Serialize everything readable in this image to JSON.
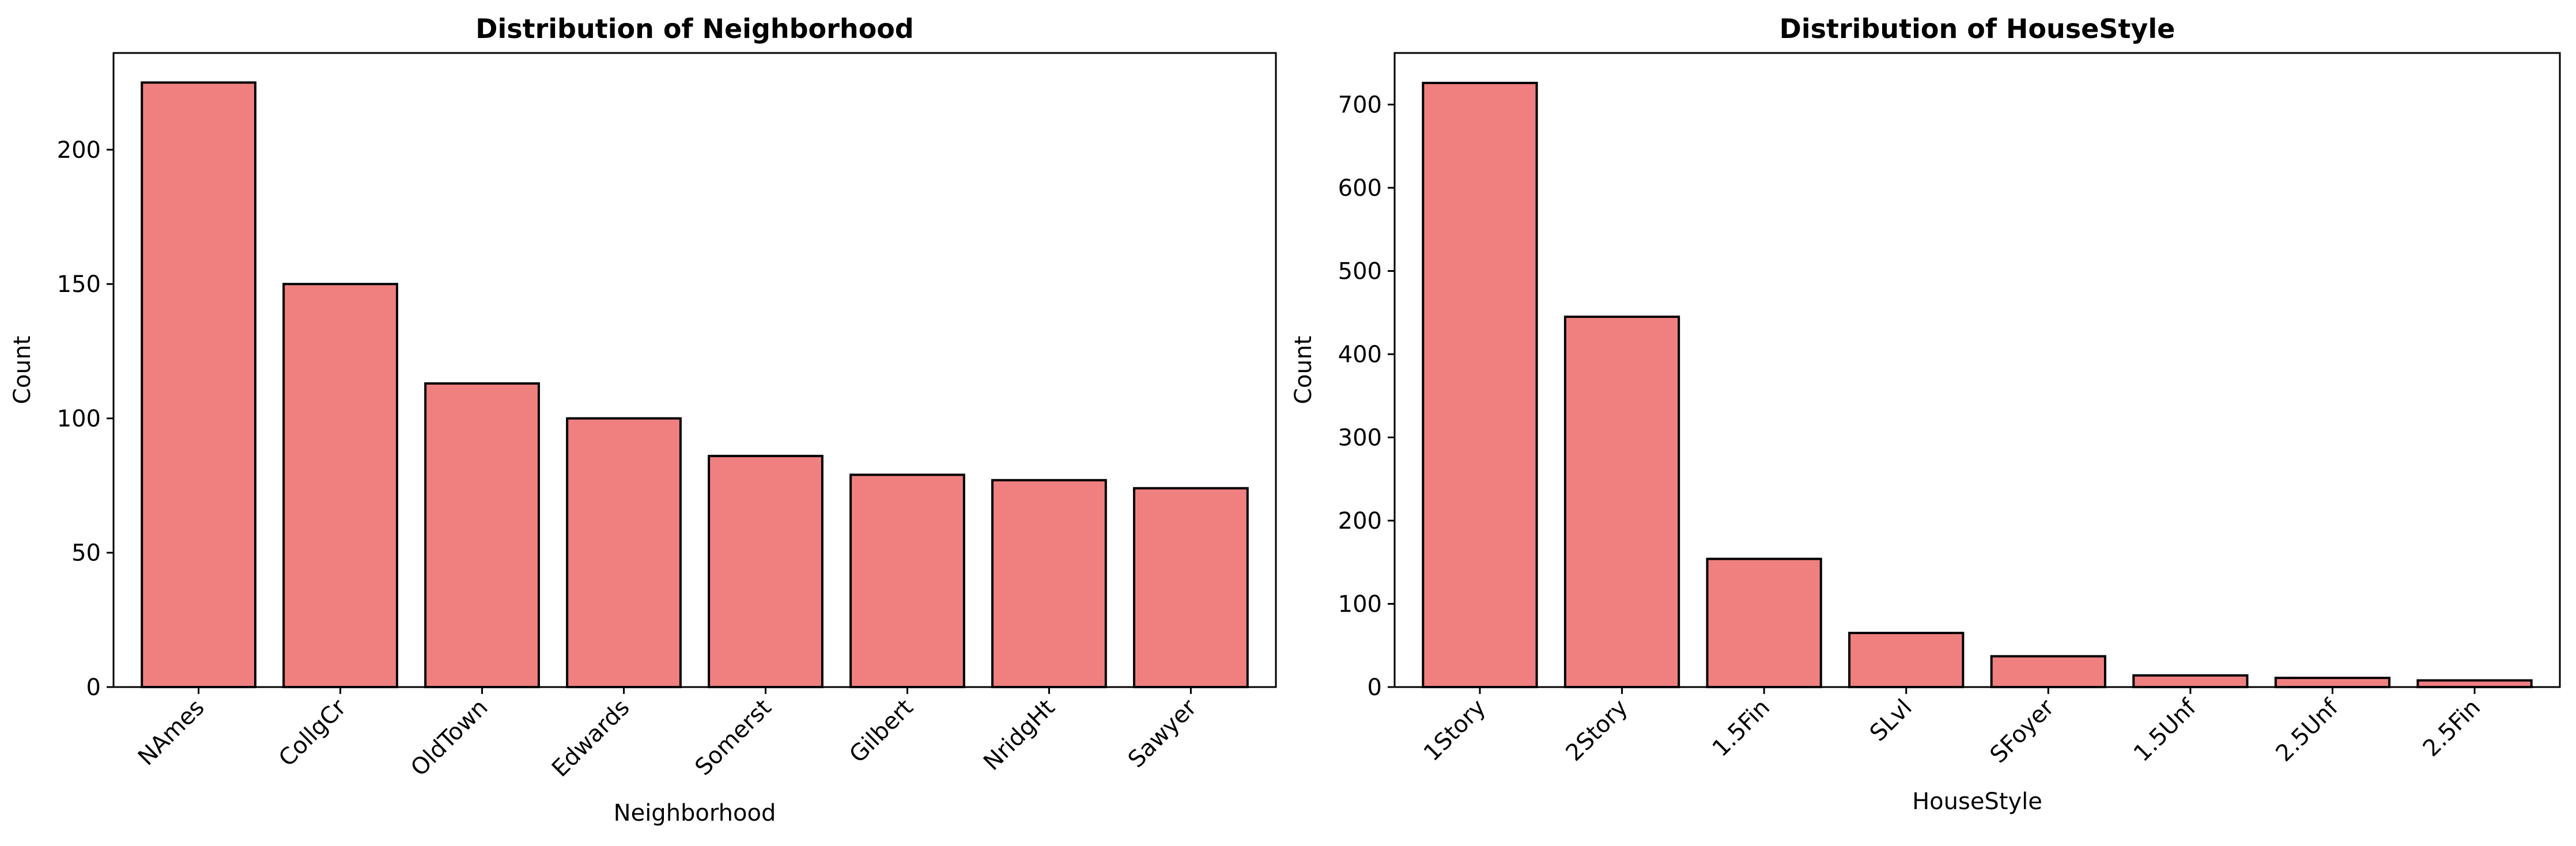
{
  "bar_color": "#f08080",
  "edge_color": "#000000",
  "chart_data": [
    {
      "type": "bar",
      "title": "Distribution of Neighborhood",
      "xlabel": "Neighborhood",
      "ylabel": "Count",
      "categories": [
        "NAmes",
        "CollgCr",
        "OldTown",
        "Edwards",
        "Somerst",
        "Gilbert",
        "NridgHt",
        "Sawyer"
      ],
      "values": [
        225,
        150,
        113,
        100,
        86,
        79,
        77,
        74
      ],
      "ylim": [
        0,
        236
      ],
      "yticks": [
        0,
        50,
        100,
        150,
        200
      ],
      "grid": false,
      "x_tick_rotation": -45
    },
    {
      "type": "bar",
      "title": "Distribution of HouseStyle",
      "xlabel": "HouseStyle",
      "ylabel": "Count",
      "categories": [
        "1Story",
        "2Story",
        "1.5Fin",
        "SLvl",
        "SFoyer",
        "1.5Unf",
        "2.5Unf",
        "2.5Fin"
      ],
      "values": [
        726,
        445,
        154,
        65,
        37,
        14,
        11,
        8
      ],
      "ylim": [
        0,
        762
      ],
      "yticks": [
        0,
        100,
        200,
        300,
        400,
        500,
        600,
        700
      ],
      "grid": false,
      "x_tick_rotation": -45
    }
  ]
}
